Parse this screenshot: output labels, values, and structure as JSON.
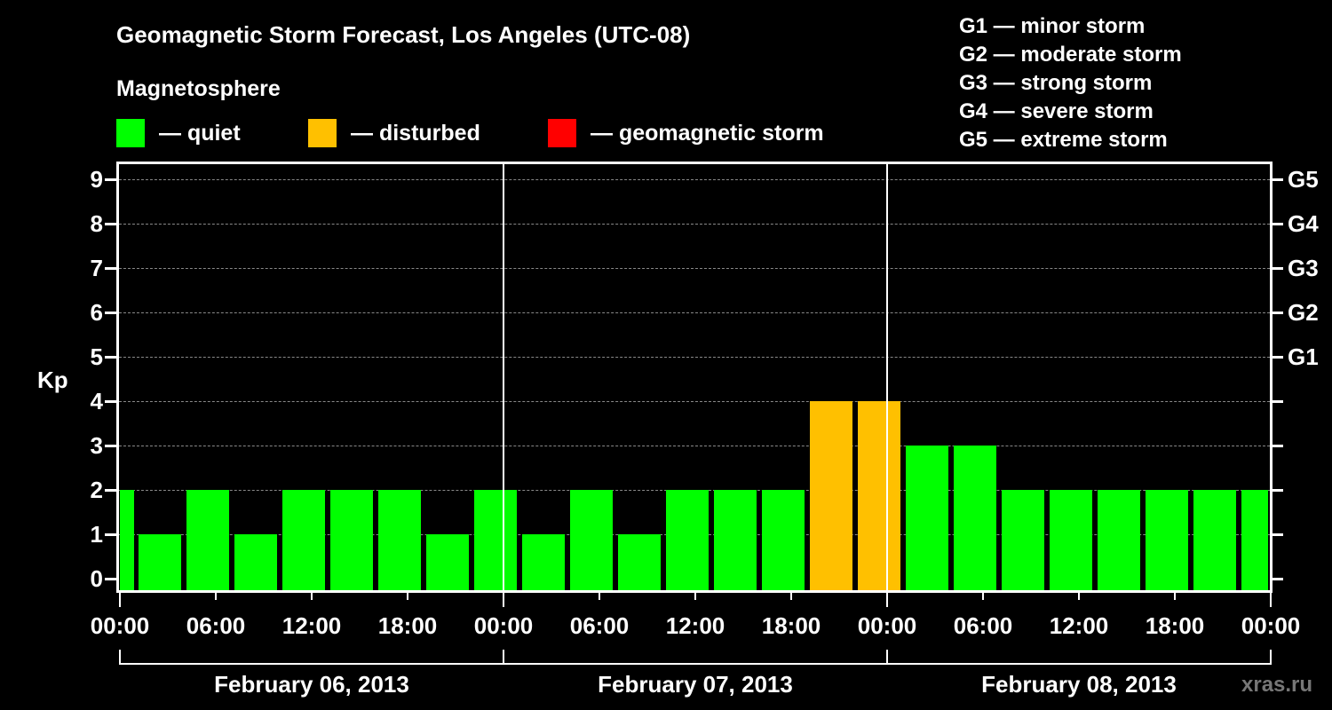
{
  "header": {
    "title": "Geomagnetic Storm Forecast, Los Angeles (UTC-08)",
    "subtitle": "Magnetosphere"
  },
  "legend": {
    "items": [
      {
        "label": "— quiet",
        "color": "#00ff00"
      },
      {
        "label": "— disturbed",
        "color": "#ffc000"
      },
      {
        "label": "— geomagnetic storm",
        "color": "#ff0000"
      }
    ]
  },
  "storm_scale": [
    "G1 — minor storm",
    "G2 — moderate storm",
    "G3 — strong storm",
    "G4 — severe storm",
    "G5 — extreme storm"
  ],
  "axis": {
    "ylabel": "Kp",
    "yticks": [
      "0",
      "1",
      "2",
      "3",
      "4",
      "5",
      "6",
      "7",
      "8",
      "9"
    ],
    "gticks": {
      "5": "G1",
      "6": "G2",
      "7": "G3",
      "8": "G4",
      "9": "G5"
    },
    "xticks": [
      "00:00",
      "06:00",
      "12:00",
      "18:00",
      "00:00",
      "06:00",
      "12:00",
      "18:00",
      "00:00",
      "06:00",
      "12:00",
      "18:00",
      "00:00"
    ],
    "days": [
      "February 06, 2013",
      "February 07, 2013",
      "February 08, 2013"
    ]
  },
  "watermark": "xras.ru",
  "chart_data": {
    "type": "bar",
    "title": "Geomagnetic Storm Forecast, Los Angeles (UTC-08)",
    "xlabel": "",
    "ylabel": "Kp",
    "ylim": [
      0,
      9
    ],
    "grid": true,
    "legend_position": "top",
    "categories": [
      "Feb06 ~00:00",
      "Feb06 03:00",
      "Feb06 06:00",
      "Feb06 09:00",
      "Feb06 12:00",
      "Feb06 15:00",
      "Feb06 18:00",
      "Feb06 21:00",
      "Feb07 00:00",
      "Feb07 03:00",
      "Feb07 06:00",
      "Feb07 09:00",
      "Feb07 12:00",
      "Feb07 15:00",
      "Feb07 18:00",
      "Feb07 21:00",
      "Feb08 00:00",
      "Feb08 03:00",
      "Feb08 06:00",
      "Feb08 09:00",
      "Feb08 12:00",
      "Feb08 15:00",
      "Feb08 18:00",
      "Feb08 21:00",
      "Feb08 ~24:00"
    ],
    "values": [
      2,
      1,
      2,
      1,
      2,
      2,
      2,
      1,
      2,
      1,
      2,
      1,
      2,
      2,
      2,
      4,
      4,
      3,
      3,
      2,
      2,
      2,
      2,
      2,
      2
    ],
    "status": [
      "quiet",
      "quiet",
      "quiet",
      "quiet",
      "quiet",
      "quiet",
      "quiet",
      "quiet",
      "quiet",
      "quiet",
      "quiet",
      "quiet",
      "quiet",
      "quiet",
      "quiet",
      "disturbed",
      "disturbed",
      "quiet",
      "quiet",
      "quiet",
      "quiet",
      "quiet",
      "quiet",
      "quiet",
      "quiet"
    ],
    "colors": {
      "quiet": "#00ff00",
      "disturbed": "#ffc000",
      "storm": "#ff0000"
    }
  }
}
